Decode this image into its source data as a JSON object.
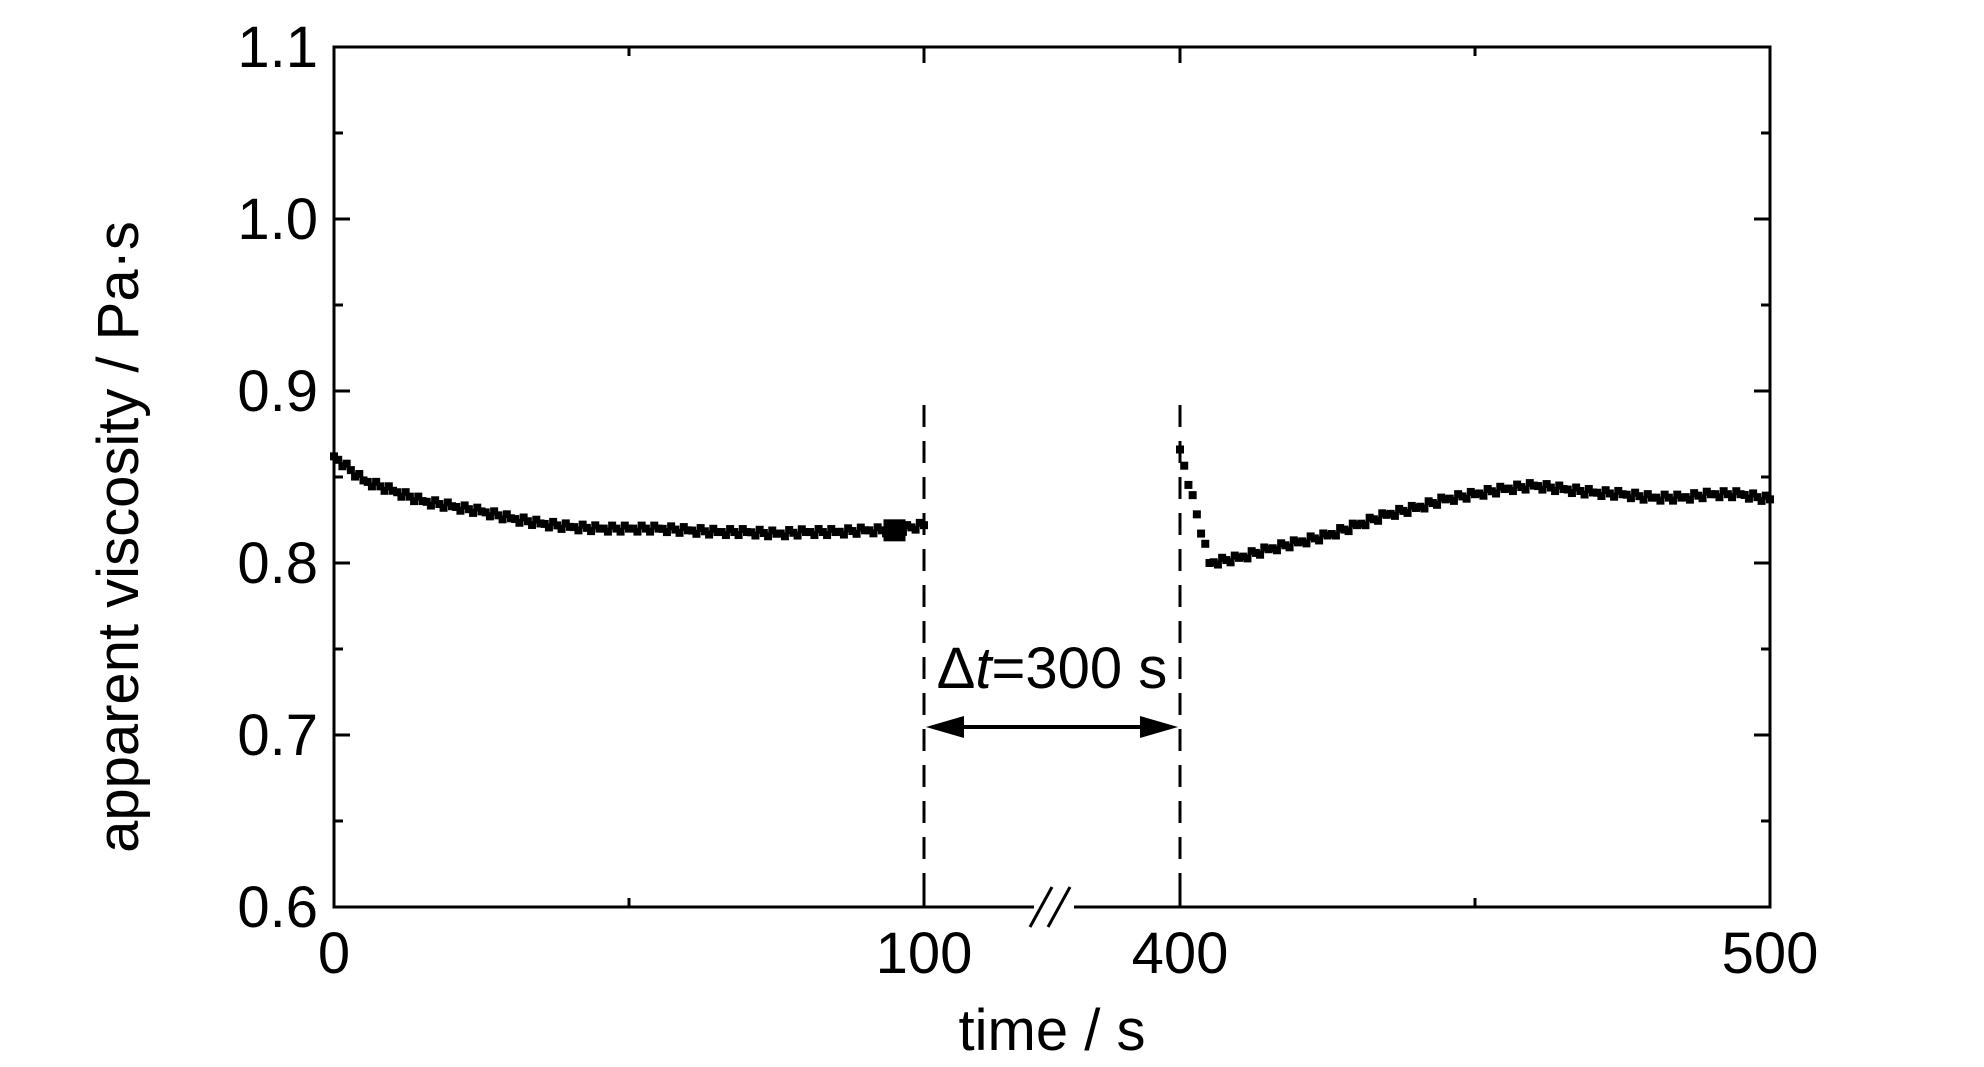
{
  "chart_data": {
    "type": "scatter",
    "title": "",
    "xlabel": "time / s",
    "ylabel": "apparent viscosity / Pa·s",
    "ylim": [
      0.6,
      1.1
    ],
    "y_ticks": [
      "0.6",
      "0.7",
      "0.8",
      "0.9",
      "1.0",
      "1.1"
    ],
    "x_tick_labels": [
      "0",
      "100",
      "400",
      "500"
    ],
    "x_segments": [
      {
        "range": [
          0,
          100
        ],
        "tick_values": [
          0,
          100
        ]
      },
      {
        "range": [
          400,
          500
        ],
        "tick_values": [
          400,
          500
        ]
      }
    ],
    "axis_break": {
      "between": [
        100,
        400
      ],
      "symbol": "//"
    },
    "grid": false,
    "annotation": {
      "delta": "Δ",
      "t": "t",
      "rest": "=300 s",
      "from_x": 100,
      "to_x": 400
    },
    "dashed_lines_x": [
      100,
      400
    ],
    "colors": {
      "marker": "#000000",
      "axes": "#000000"
    },
    "series": [
      {
        "segment1": {
          "x": [
            0,
            5,
            10,
            15,
            20,
            25,
            30,
            35,
            40,
            45,
            50,
            55,
            60,
            65,
            70,
            75,
            80,
            85,
            90,
            95,
            100
          ],
          "y": [
            0.862,
            0.848,
            0.842,
            0.836,
            0.833,
            0.83,
            0.826,
            0.823,
            0.821,
            0.82,
            0.82,
            0.82,
            0.819,
            0.818,
            0.818,
            0.817,
            0.818,
            0.818,
            0.819,
            0.819,
            0.822
          ]
        },
        "segment2": {
          "x": [
            400,
            405,
            410,
            415,
            420,
            425,
            430,
            435,
            440,
            445,
            450,
            455,
            460,
            465,
            470,
            475,
            480,
            485,
            490,
            495,
            500
          ],
          "y": [
            0.866,
            0.8,
            0.803,
            0.808,
            0.812,
            0.816,
            0.822,
            0.828,
            0.832,
            0.837,
            0.84,
            0.843,
            0.845,
            0.843,
            0.841,
            0.84,
            0.838,
            0.838,
            0.84,
            0.84,
            0.837
          ]
        }
      }
    ],
    "highlight_point": {
      "x": 95,
      "y": 0.819
    }
  }
}
